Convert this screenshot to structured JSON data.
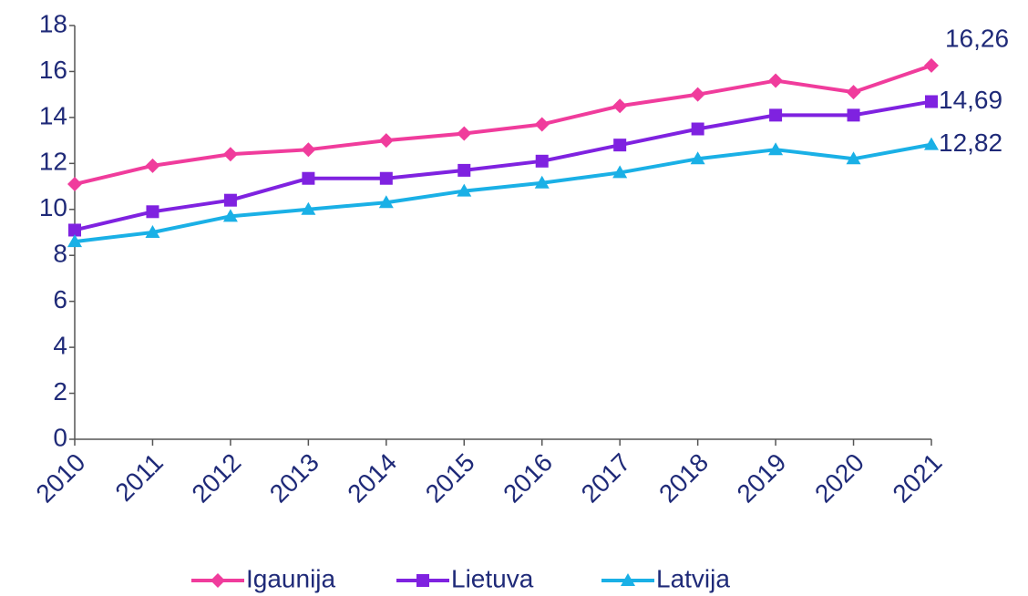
{
  "chart_data": {
    "type": "line",
    "categories": [
      "2010",
      "2011",
      "2012",
      "2013",
      "2014",
      "2015",
      "2016",
      "2017",
      "2018",
      "2019",
      "2020",
      "2021"
    ],
    "series": [
      {
        "name": "Igaunija",
        "color": "#f03c9c",
        "marker": "diamond",
        "values": [
          11.1,
          11.9,
          12.4,
          12.6,
          13.0,
          13.3,
          13.7,
          14.5,
          15.0,
          15.6,
          15.1,
          16.26
        ],
        "value_labels": [
          null,
          null,
          null,
          null,
          null,
          null,
          null,
          null,
          null,
          null,
          null,
          "16,26"
        ]
      },
      {
        "name": "Lietuva",
        "color": "#7f22e0",
        "marker": "square",
        "values": [
          9.1,
          9.9,
          10.4,
          11.35,
          11.35,
          11.7,
          12.1,
          12.8,
          13.5,
          14.1,
          14.1,
          14.69
        ],
        "value_labels": [
          null,
          null,
          null,
          null,
          null,
          null,
          null,
          null,
          null,
          null,
          null,
          "14,69"
        ]
      },
      {
        "name": "Latvija",
        "color": "#1ab0e6",
        "marker": "triangle",
        "values": [
          8.6,
          9.0,
          9.7,
          10.0,
          10.3,
          10.8,
          11.15,
          11.6,
          12.2,
          12.6,
          12.2,
          12.82
        ],
        "value_labels": [
          null,
          null,
          null,
          null,
          null,
          null,
          null,
          null,
          null,
          null,
          null,
          "12,82"
        ]
      }
    ],
    "ylim": [
      0,
      18
    ],
    "yticks": [
      0,
      2,
      4,
      6,
      8,
      10,
      12,
      14,
      16,
      18
    ],
    "grid": false,
    "legend": "bottom"
  }
}
